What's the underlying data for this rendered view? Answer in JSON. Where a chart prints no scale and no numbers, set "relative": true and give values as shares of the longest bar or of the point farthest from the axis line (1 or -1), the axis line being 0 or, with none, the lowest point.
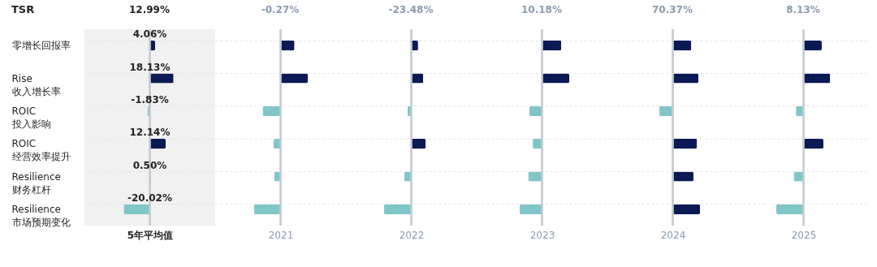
{
  "chart_data": [
    {
      "type": "bar",
      "orientation": "horizontal",
      "title": "12.99%",
      "ylabel": "TSR",
      "xlabel": "5年平均值",
      "categories": [
        "零增长回报率",
        "Rise\n收入增长率",
        "ROIC\n投入影响",
        "ROIC\n经营效率提升",
        "Resilience\n财务杠杆",
        "Resilience\n市场预期变化"
      ],
      "values": [
        4.06,
        18.13,
        -1.83,
        12.14,
        0.5,
        -20.02
      ],
      "colors": [
        "#0a1a55",
        "#0a1a55",
        "#80c6c9",
        "#0a1a55",
        "#0a1a55",
        "#80c6c9"
      ],
      "value_labels": [
        "4.06%",
        "18.13%",
        "-1.83%",
        "12.14%",
        "0.50%",
        "-20.02%"
      ],
      "tick_labels": "y",
      "grid": "y"
    },
    {
      "type": "bar",
      "orientation": "horizontal",
      "relative": true,
      "title": "-0.27%",
      "xlabel": "2021",
      "categories": [
        null,
        null,
        null,
        null,
        null,
        null
      ],
      "values": [
        0.51,
        1,
        -0.66,
        -0.26,
        -0.24,
        -0.98
      ],
      "colors": [
        "#0a1a55",
        "#0a1a55",
        "#80c6c9",
        "#80c6c9",
        "#80c6c9",
        "#80c6c9"
      ],
      "tick_labels": false,
      "grid": "y"
    },
    {
      "type": "bar",
      "orientation": "horizontal",
      "relative": true,
      "title": "-23.48%",
      "xlabel": "2022",
      "categories": [
        null,
        null,
        null,
        null,
        null,
        null
      ],
      "values": [
        0.25,
        0.44,
        -0.14,
        0.53,
        -0.26,
        -1
      ],
      "colors": [
        "#0a1a55",
        "#0a1a55",
        "#80c6c9",
        "#0a1a55",
        "#80c6c9",
        "#80c6c9"
      ],
      "tick_labels": false,
      "grid": "y"
    },
    {
      "type": "bar",
      "orientation": "horizontal",
      "relative": true,
      "title": "10.18%",
      "xlabel": "2023",
      "categories": [
        null,
        null,
        null,
        null,
        null,
        null
      ],
      "values": [
        0.71,
        1,
        -0.47,
        -0.34,
        -0.51,
        -0.83
      ],
      "colors": [
        "#0a1a55",
        "#0a1a55",
        "#80c6c9",
        "#80c6c9",
        "#80c6c9",
        "#80c6c9"
      ],
      "tick_labels": false,
      "grid": "y"
    },
    {
      "type": "bar",
      "orientation": "horizontal",
      "relative": true,
      "title": "70.37%",
      "xlabel": "2024",
      "categories": [
        null,
        null,
        null,
        null,
        null,
        null
      ],
      "values": [
        0.68,
        0.94,
        -0.5,
        0.89,
        0.76,
        1
      ],
      "colors": [
        "#0a1a55",
        "#0a1a55",
        "#80c6c9",
        "#0a1a55",
        "#0a1a55",
        "#0a1a55"
      ],
      "tick_labels": false,
      "grid": "y"
    },
    {
      "type": "bar",
      "orientation": "horizontal",
      "relative": true,
      "title": "8.13%",
      "xlabel": "2025",
      "categories": [
        null,
        null,
        null,
        null,
        null,
        null
      ],
      "values": [
        0.67,
        0.98,
        -0.28,
        0.73,
        -0.36,
        -1
      ],
      "colors": [
        "#0a1a55",
        "#0a1a55",
        "#80c6c9",
        "#0a1a55",
        "#80c6c9",
        "#80c6c9"
      ],
      "tick_labels": false,
      "grid": "y"
    }
  ]
}
